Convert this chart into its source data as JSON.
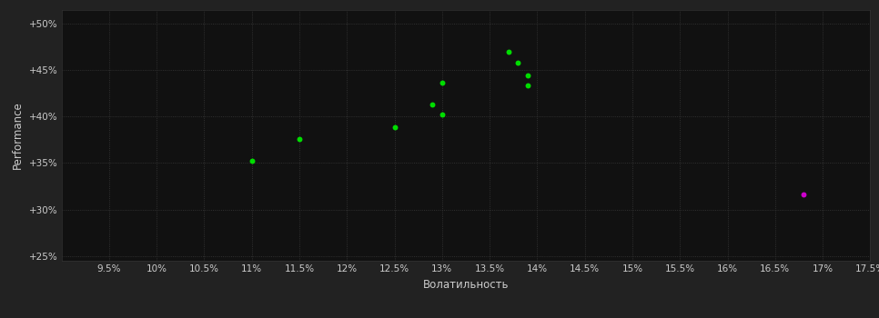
{
  "background_color": "#222222",
  "plot_bg_color": "#111111",
  "grid_color": "#3a3a3a",
  "text_color": "#cccccc",
  "xlabel": "Волатильность",
  "ylabel": "Performance",
  "xlim": [
    0.09,
    0.175
  ],
  "ylim": [
    0.245,
    0.515
  ],
  "xticks": [
    0.095,
    0.1,
    0.105,
    0.11,
    0.115,
    0.12,
    0.125,
    0.13,
    0.135,
    0.14,
    0.145,
    0.15,
    0.155,
    0.16,
    0.165,
    0.17,
    0.175
  ],
  "yticks": [
    0.25,
    0.3,
    0.35,
    0.4,
    0.45,
    0.5
  ],
  "green_points": [
    [
      0.11,
      0.352
    ],
    [
      0.115,
      0.376
    ],
    [
      0.125,
      0.389
    ],
    [
      0.129,
      0.413
    ],
    [
      0.13,
      0.402
    ],
    [
      0.13,
      0.436
    ],
    [
      0.137,
      0.47
    ],
    [
      0.138,
      0.458
    ],
    [
      0.139,
      0.444
    ],
    [
      0.139,
      0.433
    ]
  ],
  "magenta_points": [
    [
      0.168,
      0.316
    ]
  ],
  "green_color": "#00dd00",
  "magenta_color": "#cc00cc",
  "point_size": 18
}
